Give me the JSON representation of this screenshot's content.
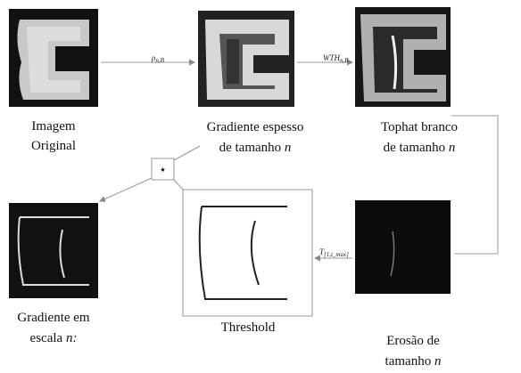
{
  "nodes": [
    {
      "lines": [
        [
          "Imagem"
        ],
        [
          "Original"
        ]
      ]
    },
    {
      "lines": [
        [
          "Gradiente espesso"
        ],
        [
          "de tamanho ",
          "n"
        ]
      ]
    },
    {
      "lines": [
        [
          "Tophat branco"
        ],
        [
          "de tamanho ",
          "n"
        ]
      ]
    },
    {
      "lines": [
        [
          "Gradiente em"
        ],
        [
          "escala ",
          "n:"
        ]
      ]
    },
    {
      "lines": [
        [
          "Threshold"
        ]
      ]
    },
    {
      "lines": [
        [
          "Erosão de"
        ],
        [
          "tamanho ",
          "n"
        ]
      ]
    }
  ],
  "edges": [
    {
      "main": "ρ",
      "sub": "n,B"
    },
    {
      "main": "WTH",
      "sub": "n,B"
    },
    {
      "main": "T",
      "sub": "[1,t_max]"
    },
    {
      "main": "⋆"
    }
  ]
}
